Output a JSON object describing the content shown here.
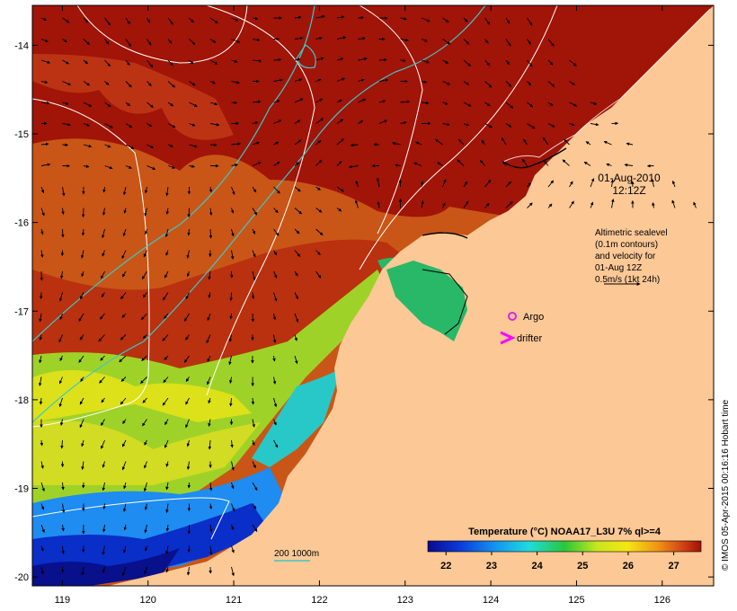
{
  "map": {
    "lon_ticks": [
      "119",
      "120",
      "121",
      "122",
      "123",
      "124",
      "125",
      "126"
    ],
    "lat_ticks": [
      "-14",
      "-15",
      "-16",
      "-17",
      "-18",
      "-19",
      "-20"
    ],
    "lon_range": [
      118.65,
      126.6
    ],
    "lat_range": [
      -20.1,
      -13.55
    ]
  },
  "annotations": {
    "date": "01-Aug-2010",
    "time": "12:12Z",
    "sealevel_lines": [
      "Altimetric sealevel",
      "(0.1m contours)",
      "and velocity for",
      "01-Aug 12Z",
      "0.5m/s (1kt 24h)"
    ],
    "argo_label": "Argo",
    "drifter_label": "drifter",
    "isobath_label": "200  1000m",
    "credit": "© IMOS 05-Apr-2015 00:16:16 Hobart time"
  },
  "colorbar": {
    "title": "Temperature (°C) NOAA17_L3U 7% ql>=4",
    "ticks": [
      "22",
      "23",
      "24",
      "25",
      "26",
      "27"
    ],
    "range": [
      21.6,
      27.6
    ]
  },
  "colors": {
    "land": "#fcc896",
    "warm": "#a11408",
    "argo": "#e020e0",
    "drifter": "#ff00ff",
    "isobath": "#3cc8c8"
  }
}
